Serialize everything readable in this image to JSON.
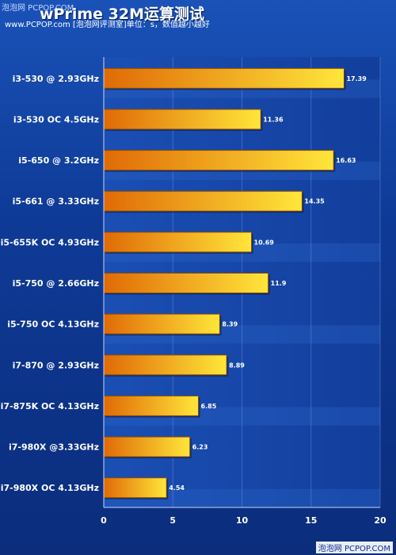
{
  "watermark": "泡泡网 PCPOP.COM",
  "title": "wPrime 32M运算测试",
  "subtitle": "www.PCPOP.com [泡泡网评测室]单位：s，数值越小越好",
  "credit": "泡泡网 PCPOP.COM",
  "colors": {
    "background": "#0d2f7e",
    "bar_start": "#e06a06",
    "bar_end": "#ffe63a",
    "band": "#2a63c8"
  },
  "chart_data": {
    "type": "bar",
    "orientation": "horizontal",
    "categories": [
      "i3-530 @ 2.93GHz",
      "i3-530 OC 4.5GHz",
      "i5-650 @ 3.2GHz",
      "i5-661 @ 3.33GHz",
      "i5-655K OC 4.93GHz",
      "i5-750 @ 2.66GHz",
      "i5-750 OC 4.13GHz",
      "i7-870 @ 2.93GHz",
      "i7-875K OC 4.13GHz",
      "i7-980X @3.33GHz",
      "i7-980X OC 4.13GHz"
    ],
    "values": [
      17.39,
      11.36,
      16.63,
      14.35,
      10.69,
      11.9,
      8.39,
      8.89,
      6.85,
      6.23,
      4.54
    ],
    "value_labels": [
      "17.39",
      "11.36",
      "16.63",
      "14.35",
      "10.69",
      "11.9",
      "8.39",
      "8.89",
      "6.85",
      "6.23",
      "4.54"
    ],
    "xlim": [
      0,
      20
    ],
    "xticks": [
      0,
      5,
      10,
      15,
      20
    ],
    "grid": true
  }
}
